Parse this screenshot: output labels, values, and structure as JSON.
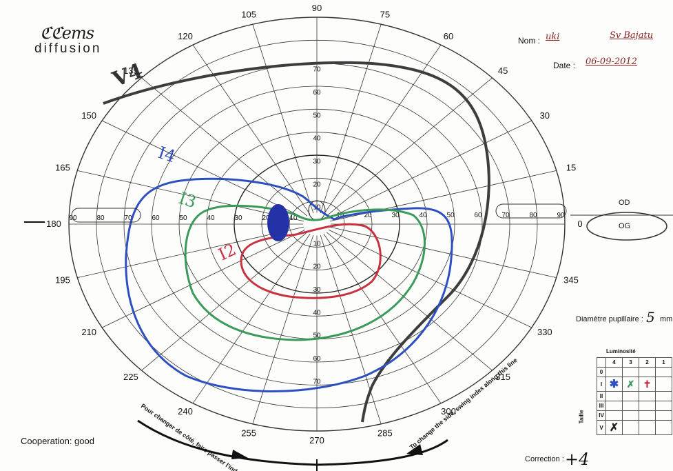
{
  "logo": {
    "mark": "ℭℭems",
    "sub": "diffusion"
  },
  "header": {
    "name_label": "Nom :",
    "name_value": "uki",
    "name_extra": "Sv Bajatu",
    "date_label": "Date :",
    "date_value": "06-09-2012"
  },
  "meridians": {
    "top": [
      "120",
      "105",
      "90",
      "75",
      "60"
    ],
    "upper_right": [
      "45",
      "30",
      "15"
    ],
    "right": "0",
    "lower_right": [
      "345",
      "330",
      "315"
    ],
    "bottom": [
      "240",
      "255",
      "270",
      "285",
      "300"
    ],
    "left": [
      "135",
      "150",
      "165",
      "180",
      "195",
      "210",
      "225"
    ]
  },
  "radial_scale": {
    "upper": [
      "70",
      "60",
      "50",
      "40",
      "30",
      "20",
      "10"
    ],
    "lower": [
      "10",
      "20",
      "30",
      "40",
      "50",
      "60",
      "70"
    ],
    "left": [
      "90",
      "80",
      "70",
      "60",
      "50",
      "40",
      "30",
      "20",
      "10"
    ],
    "right": [
      "10",
      "20",
      "30",
      "40",
      "50",
      "60",
      "70",
      "80",
      "90"
    ]
  },
  "eye": {
    "od": "OD",
    "og": "OG"
  },
  "pupil": {
    "label": "Diamètre pupillaire :",
    "value": "5",
    "unit": "mm"
  },
  "luminosity": {
    "title": "Luminosité",
    "cols": [
      "4",
      "3",
      "2",
      "1"
    ],
    "rows": [
      "0",
      "I",
      "II",
      "III",
      "IV",
      "V"
    ],
    "size_label": "Taille"
  },
  "isopters": [
    {
      "label": "V4",
      "color": "#3d3d3d"
    },
    {
      "label": "I4",
      "color": "#2e4fbf"
    },
    {
      "label": "I3",
      "color": "#3a9a5a"
    },
    {
      "label": "I2",
      "color": "#c8323f"
    }
  ],
  "instructions": {
    "fr": "Pour changer de côté, faire passer l'index par ici",
    "en": "To change the side, swing index along this line"
  },
  "cooperation": "Cooperation: good",
  "correction": {
    "label": "Correction :",
    "value": "+4"
  }
}
